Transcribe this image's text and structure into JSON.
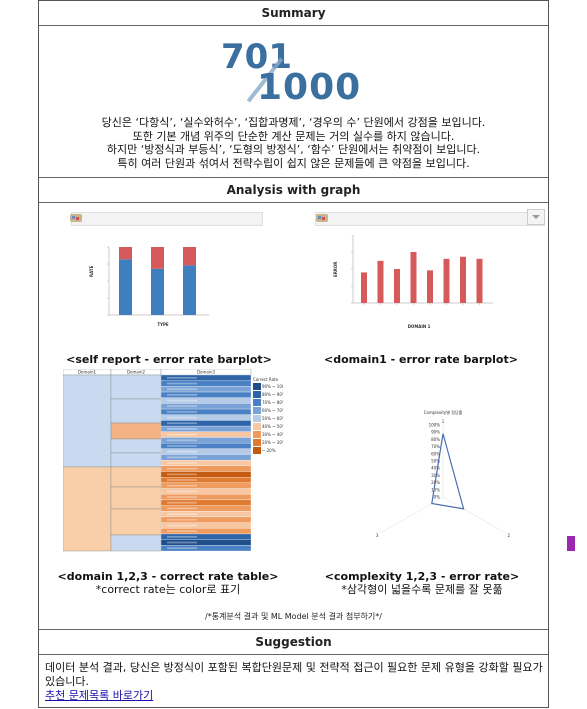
{
  "summary": {
    "heading": "Summary",
    "score": {
      "value": "701",
      "total": "1000"
    },
    "lines": [
      "당신은 ‘다항식’, ‘실수와허수’, ‘집합과명제’, ‘경우의 수’ 단원에서 강점을 보입니다.",
      "또한 기본 개념 위주의 단순한 계산 문제는 거의 실수를 하지 않습니다.",
      "하지만 ‘방정식과 부등식’, ‘도형의 방정식’, ‘함수’ 단원에서는 취약점이 보입니다.",
      "특히 여러 단원과 섞여서 전략수립이 쉽지 않은 문제들에 큰 약점을 보입니다."
    ]
  },
  "analysis": {
    "heading": "Analysis with graph",
    "captions": {
      "self_report": "<self report - error rate barplot>",
      "domain1": "<domain1 - error rate barplot>",
      "table": "<domain 1,2,3 - correct rate table>",
      "table_sub": "*correct rate는 color로 표기",
      "complexity": "<complexity 1,2,3 - error rate>",
      "complexity_sub": "*삼각형이 넓을수록 문제를 잘 못풂"
    },
    "footnote": "/*통계분석 결과 및 ML Model 분석 결과 첨부하기*/",
    "chart1": {
      "xlabel": "TYPE",
      "ylabel": "RATE"
    },
    "chart2": {
      "xlabel": "DOMAIN 1",
      "ylabel": "ERROR"
    },
    "table": {
      "headers": [
        "Domain1",
        "Domain2",
        "Domain3"
      ],
      "legend_title": "Correct Rate",
      "legend": [
        "90% ~ 100%",
        "80% ~ 90%",
        "70% ~ 80%",
        "60% ~ 70%",
        "50% ~ 60%",
        "40% ~ 50%",
        "30% ~ 40%",
        "20% ~ 30%",
        "~ 20%"
      ]
    },
    "radar_title": "Complexity별 정답률",
    "radar_ticks": [
      "100%",
      "90%",
      "80%",
      "70%",
      "60%",
      "50%",
      "40%",
      "30%",
      "20%",
      "10%",
      "0%"
    ],
    "radar_axes": [
      "1",
      "2",
      "3"
    ]
  },
  "chart_data": [
    {
      "type": "bar",
      "title": "",
      "xlabel": "TYPE",
      "ylabel": "RATE",
      "categories": [
        "",
        "",
        ""
      ],
      "series": [
        {
          "values": [
            0.82,
            0.68,
            0.73
          ]
        },
        {
          "values": [
            0.18,
            0.32,
            0.27
          ]
        }
      ],
      "stacked": true,
      "colors": [
        "#3f7fc0",
        "#d65a5a"
      ]
    },
    {
      "type": "bar",
      "title": "",
      "xlabel": "DOMAIN 1",
      "ylabel": "ERROR",
      "categories": [
        "",
        "",
        "",
        "",
        "",
        "",
        "",
        ""
      ],
      "values": [
        0.45,
        0.62,
        0.5,
        0.75,
        0.48,
        0.65,
        0.68,
        0.65
      ],
      "colors": [
        "#d65a5a"
      ]
    },
    {
      "type": "radar",
      "title": "Complexity별 정답률",
      "categories": [
        "1",
        "2",
        "3"
      ],
      "values": [
        0.88,
        0.33,
        0.18
      ]
    }
  ],
  "suggestion": {
    "heading": "Suggestion",
    "text": "데이터 분석 결과, 당신은 방정식이 포함된 복합단원문제 및 전략적 접근이 필요한 문제 유형을 강화할 필요가 있습니다.",
    "link": "추천 문제목록 바로가기"
  }
}
